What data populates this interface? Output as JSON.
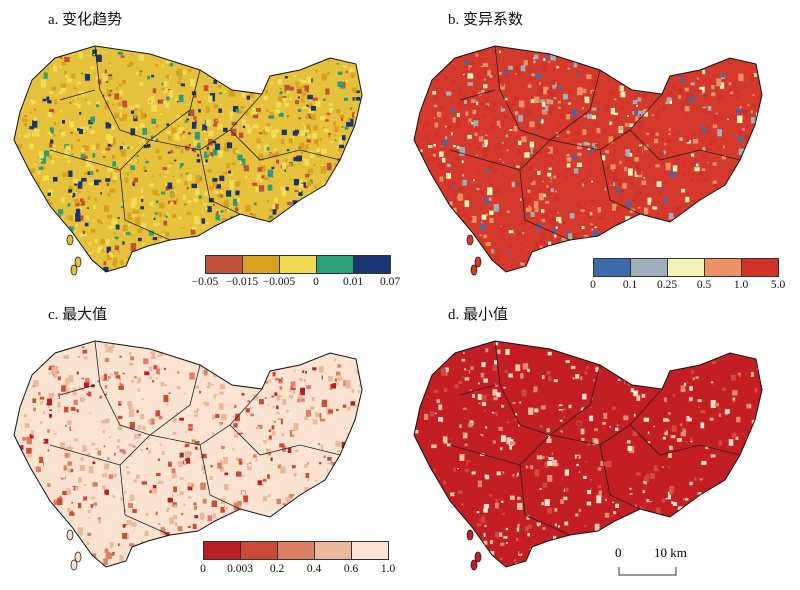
{
  "panels": [
    {
      "id": "a",
      "title": "a. 变化趋势",
      "base": "#e6c23c",
      "legend": {
        "colors": [
          "#c0513a",
          "#d9a11e",
          "#f3dc55",
          "#2a9f78",
          "#1a3471"
        ],
        "labels": [
          "−0.05",
          "−0.015",
          "−0.005",
          "0",
          "0.01",
          "0.07"
        ]
      },
      "mix": [
        0.12,
        0.3,
        0.35,
        0.1,
        0.13
      ]
    },
    {
      "id": "b",
      "title": "b. 变异系数",
      "base": "#d5392c",
      "legend": {
        "colors": [
          "#3e6aaa",
          "#9fb0b8",
          "#f6f3b8",
          "#ec9266",
          "#d0322a"
        ],
        "labels": [
          "0",
          "0.1",
          "0.25",
          "0.5",
          "1.0",
          "5.0"
        ]
      },
      "mix": [
        0.08,
        0.12,
        0.12,
        0.18,
        0.5
      ]
    },
    {
      "id": "c",
      "title": "c. 最大值",
      "base": "#fbe3d2",
      "legend": {
        "colors": [
          "#b81f24",
          "#cc4b37",
          "#da7f63",
          "#ebb89c",
          "#fde5d3"
        ],
        "labels": [
          "0",
          "0.003",
          "0.2",
          "0.4",
          "0.6",
          "1.0"
        ]
      },
      "mix": [
        0.05,
        0.12,
        0.15,
        0.28,
        0.4
      ]
    },
    {
      "id": "d",
      "title": "d. 最小值",
      "base": "#c41e25",
      "mix": [
        0.6,
        0.1,
        0.08,
        0.1,
        0.12
      ],
      "palette": [
        "#c41e25",
        "#d04a3a",
        "#e08a70",
        "#f0c3a8",
        "#fbe3d2"
      ]
    }
  ],
  "scale_bar": {
    "zero": "0",
    "label": "10 km"
  }
}
